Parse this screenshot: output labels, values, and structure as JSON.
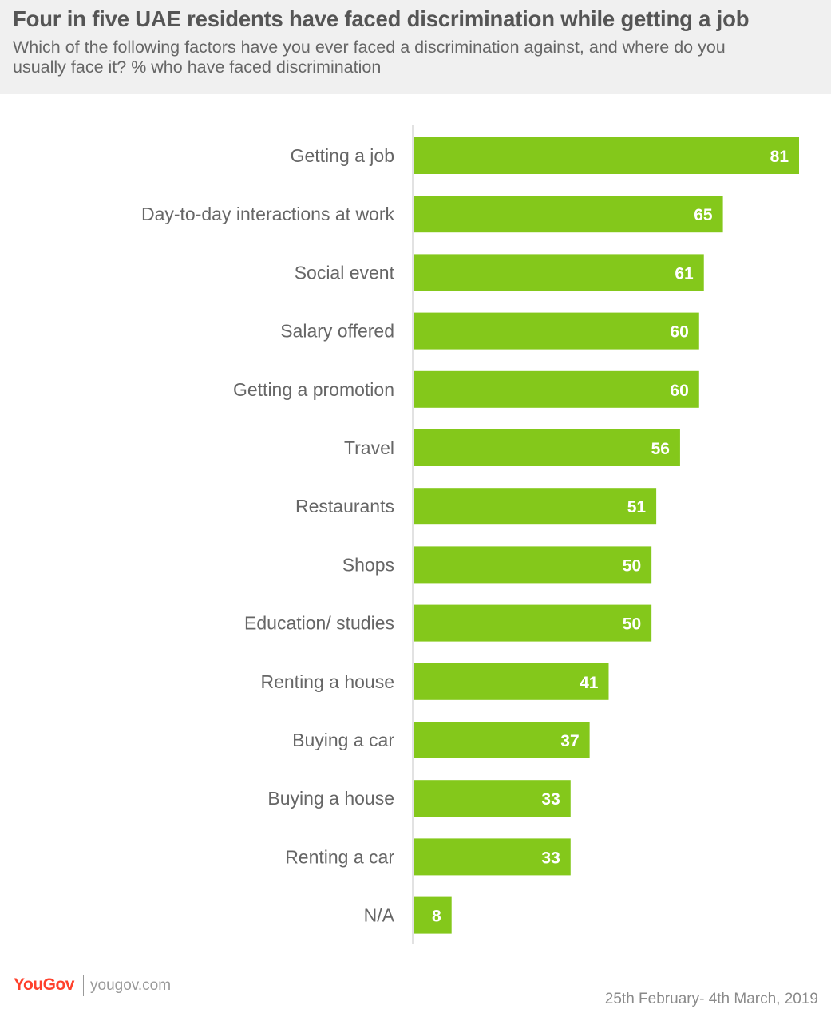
{
  "header": {
    "title": "Four in five UAE residents have faced discrimination while getting a job",
    "subtitle": "Which of the following factors have you ever faced a discrimination against, and where do you usually face it? % who have faced discrimination"
  },
  "footer": {
    "logo": "YouGov",
    "site": "yougov.com",
    "date": "25th February- 4th March,  2019"
  },
  "colors": {
    "bar": "#84c81b",
    "label": "#666666",
    "value_text": "#ffffff",
    "axis": "#d9d9d9",
    "brand": "#ff412c"
  },
  "chart_data": {
    "type": "bar",
    "orientation": "horizontal",
    "title": "Four in five UAE residents have faced discrimination while getting a job",
    "categories": [
      "Getting a job",
      "Day-to-day interactions at work",
      "Social event",
      "Salary offered",
      "Getting a promotion",
      "Travel",
      "Restaurants",
      "Shops",
      "Education/ studies",
      "Renting a house",
      "Buying a car",
      "Buying a house",
      "Renting a car",
      "N/A"
    ],
    "values": [
      81,
      65,
      61,
      60,
      60,
      56,
      51,
      50,
      50,
      41,
      37,
      33,
      33,
      8
    ],
    "xlim": [
      0,
      81
    ],
    "grid": false,
    "legend": "none",
    "data_labels": true
  }
}
